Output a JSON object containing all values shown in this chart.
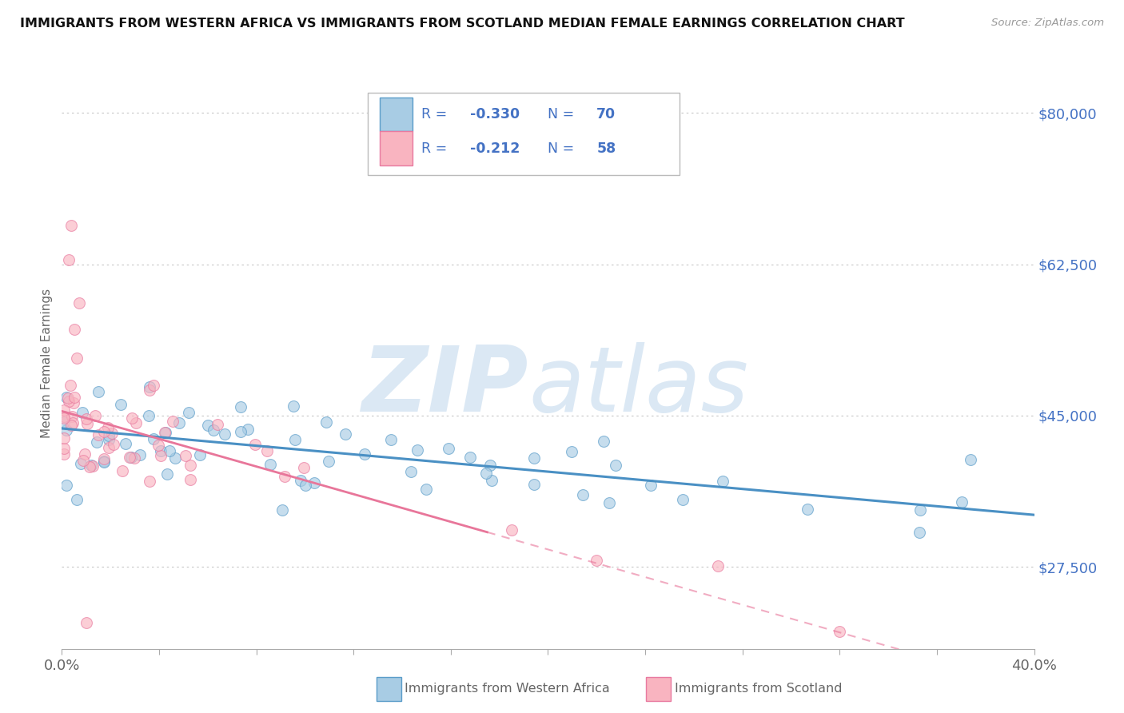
{
  "title": "IMMIGRANTS FROM WESTERN AFRICA VS IMMIGRANTS FROM SCOTLAND MEDIAN FEMALE EARNINGS CORRELATION CHART",
  "source": "Source: ZipAtlas.com",
  "ylabel": "Median Female Earnings",
  "yticks": [
    27500,
    45000,
    62500,
    80000
  ],
  "ytick_labels": [
    "$27,500",
    "$45,000",
    "$62,500",
    "$80,000"
  ],
  "xmin": 0.0,
  "xmax": 0.4,
  "ymin": 18000,
  "ymax": 84000,
  "legend_r1": "R = -0.330",
  "legend_n1": "N = 70",
  "legend_r2": "R = -0.212",
  "legend_n2": "N = 58",
  "color_blue": "#a8cce4",
  "color_pink": "#f9b4c0",
  "color_blue_edge": "#5b9dc9",
  "color_pink_edge": "#e87aa0",
  "color_blue_line": "#4a90c4",
  "color_pink_line": "#e8769a",
  "color_ytick": "#4472c4",
  "watermark_color": "#ccdff0",
  "grid_color": "#cccccc",
  "axis_color": "#aaaaaa",
  "label_color": "#666666",
  "title_color": "#111111"
}
